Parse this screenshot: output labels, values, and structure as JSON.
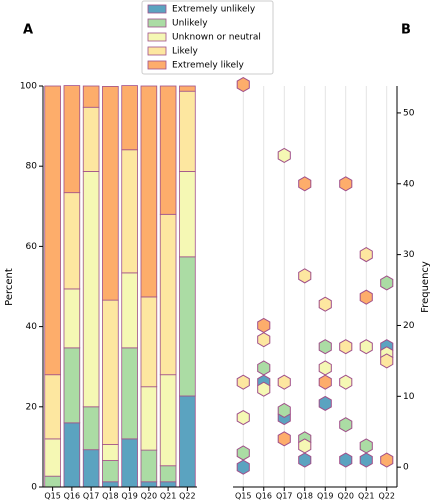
{
  "chart_data": [
    {
      "type": "bar",
      "stacked": true,
      "title": "A",
      "y_label": "Percent",
      "categories": [
        "Q15",
        "Q16",
        "Q17",
        "Q18",
        "Q19",
        "Q20",
        "Q21",
        "Q22"
      ],
      "series": [
        {
          "name": "Extremely unlikely",
          "color": "#5ba3c0",
          "values": [
            0,
            16,
            9.3,
            1.3,
            12,
            1.3,
            1.3,
            22.7
          ]
        },
        {
          "name": "Unlikely",
          "color": "#abdca4",
          "values": [
            2.7,
            18.7,
            10.7,
            5.3,
            22.7,
            7.9,
            4,
            34.7
          ]
        },
        {
          "name": "Unknown or neutral",
          "color": "#f5f8b4",
          "values": [
            9.3,
            14.7,
            58.7,
            4,
            18.7,
            15.8,
            22.7,
            21.3
          ]
        },
        {
          "name": "Likely",
          "color": "#fde7a0",
          "values": [
            16,
            24,
            16,
            36,
            30.7,
            22.4,
            40,
            20
          ]
        },
        {
          "name": "Extremely likely",
          "color": "#fdad6b",
          "values": [
            72,
            26.7,
            5.3,
            53.3,
            16,
            52.6,
            32,
            1.3
          ]
        }
      ],
      "ylim": [
        0,
        100
      ],
      "yticks": [
        0,
        20,
        40,
        60,
        80,
        100
      ],
      "legend": "upper center",
      "edge_color": "#a0508a"
    },
    {
      "type": "scatter",
      "marker": "hexagon",
      "title": "B",
      "y_label": "Frequency",
      "categories": [
        "Q15",
        "Q16",
        "Q17",
        "Q18",
        "Q19",
        "Q20",
        "Q21",
        "Q22"
      ],
      "series": [
        {
          "color": "#5ba3c0",
          "values": [
            0,
            12,
            7,
            1,
            9,
            1,
            1,
            17
          ]
        },
        {
          "color": "#abdca4",
          "values": [
            2,
            14,
            8,
            4,
            17,
            6,
            3,
            26
          ]
        },
        {
          "color": "#f5f8b4",
          "values": [
            7,
            11,
            44,
            3,
            14,
            12,
            17,
            16
          ]
        },
        {
          "color": "#fde7a0",
          "values": [
            12,
            18,
            12,
            27,
            23,
            17,
            30,
            15
          ]
        },
        {
          "color": "#fdad6b",
          "values": [
            54,
            20,
            4,
            40,
            12,
            40,
            24,
            1
          ]
        }
      ],
      "ylim": [
        -2.8,
        53.8
      ],
      "yticks": [
        0,
        10,
        20,
        30,
        40,
        50
      ],
      "grid": "x",
      "y_axis_side": "right",
      "edge_color": "#a0508a"
    }
  ]
}
